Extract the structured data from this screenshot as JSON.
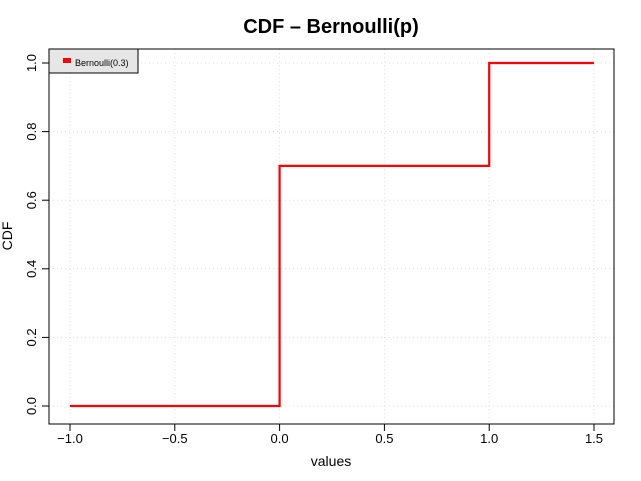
{
  "chart_data": {
    "type": "line",
    "title": "CDF – Bernoulli(p)",
    "xlabel": "values",
    "ylabel": "CDF",
    "xlim": [
      -1.0,
      1.5
    ],
    "ylim": [
      0.0,
      1.0
    ],
    "grid": true,
    "legend_position": "top-left",
    "x_ticks": [
      "−1.0",
      "−0.5",
      "0.0",
      "0.5",
      "1.0",
      "1.5"
    ],
    "x_tick_values": [
      -1.0,
      -0.5,
      0.0,
      0.5,
      1.0,
      1.5
    ],
    "y_ticks": [
      "0.0",
      "0.2",
      "0.4",
      "0.6",
      "0.8",
      "1.0"
    ],
    "y_tick_values": [
      0.0,
      0.2,
      0.4,
      0.6,
      0.8,
      1.0
    ],
    "series": [
      {
        "name": "Bernoulli(0.3)",
        "color": "#ff0000",
        "step": true,
        "x": [
          -1.0,
          0.0,
          0.0,
          1.0,
          1.0,
          1.5
        ],
        "y": [
          0.0,
          0.0,
          0.7,
          0.7,
          1.0,
          1.0
        ]
      }
    ],
    "grid_color": "#dddddd",
    "axis_color": "#000000"
  }
}
